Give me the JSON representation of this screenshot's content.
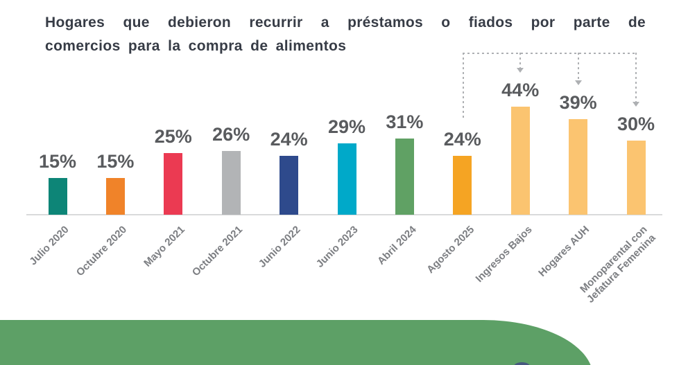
{
  "title": {
    "line1": "Hogares que debieron recurrir a préstamos o fiados por parte de",
    "line2": "comercios para la compra de alimentos"
  },
  "chart_data": {
    "type": "bar",
    "title": "Hogares que debieron recurrir a préstamos o fiados por parte de comercios para la compra de alimentos",
    "unit": "%",
    "categories": [
      "Julio 2020",
      "Octubre 2020",
      "Mayo 2021",
      "Octubre 2021",
      "Junio 2022",
      "Junio 2023",
      "Abril 2024",
      "Agosto 2025",
      "Ingresos Bajos",
      "Hogares AUH",
      "Monoparental con\nJefatura Femenina"
    ],
    "values": [
      15,
      15,
      25,
      26,
      24,
      29,
      31,
      24,
      44,
      39,
      30
    ],
    "value_labels": [
      "15%",
      "15%",
      "25%",
      "26%",
      "24%",
      "29%",
      "31%",
      "24%",
      "44%",
      "39%",
      "30%"
    ],
    "bar_colors": [
      "#0d8577",
      "#f08329",
      "#eb3a52",
      "#b2b4b6",
      "#2e4a8c",
      "#00a9c9",
      "#60a164",
      "#f5a423",
      "#fbc470",
      "#fbc470",
      "#fbc470"
    ],
    "ylim": [
      0,
      50
    ],
    "grid": false,
    "legend": false,
    "annotation": {
      "style": "dashed-arrows",
      "from": "Agosto 2025",
      "targets": [
        "Ingresos Bajos",
        "Hogares AUH",
        "Monoparental con Jefatura Femenina"
      ]
    }
  },
  "colors": {
    "title_text": "#373c46",
    "value_label_text": "#595b5e",
    "axis_label_text": "#7c7e82",
    "axis_line": "#d9dadb",
    "dashed_connector": "#aeb0b3",
    "footer_shape": "#5da066",
    "footer_accent": "#47597e",
    "background": "#ffffff"
  }
}
